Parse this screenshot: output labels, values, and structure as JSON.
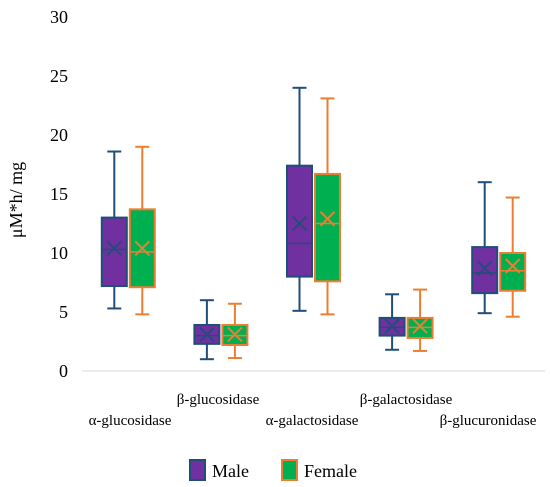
{
  "chart_data": {
    "type": "boxplot",
    "title": "",
    "xlabel": "",
    "ylabel": "μM*h/ mg",
    "ylim": [
      0,
      30
    ],
    "yticks": [
      0,
      5,
      10,
      15,
      20,
      25,
      30
    ],
    "grid": false,
    "legend_position": "bottom",
    "categories": [
      "α-glucosidase",
      "β-glucosidase",
      "α-galactosidase",
      "β-galactosidase",
      "β-glucuronidase"
    ],
    "series": [
      {
        "name": "Male",
        "fill": "#7030A0",
        "stroke": "#1F4E79",
        "data": [
          {
            "min": 5.3,
            "q1": 7.2,
            "median": 10.3,
            "q3": 13.0,
            "max": 18.6,
            "mean": 10.4
          },
          {
            "min": 1.0,
            "q1": 2.3,
            "median": 3.0,
            "q3": 3.9,
            "max": 6.0,
            "mean": 3.1
          },
          {
            "min": 5.1,
            "q1": 8.0,
            "median": 10.8,
            "q3": 17.4,
            "max": 24.0,
            "mean": 12.5
          },
          {
            "min": 1.8,
            "q1": 3.0,
            "median": 3.7,
            "q3": 4.5,
            "max": 6.5,
            "mean": 3.8
          },
          {
            "min": 4.9,
            "q1": 6.6,
            "median": 8.3,
            "q3": 10.5,
            "max": 16.0,
            "mean": 8.7
          }
        ]
      },
      {
        "name": "Female",
        "fill": "#00B050",
        "stroke": "#ED7D31",
        "data": [
          {
            "min": 4.8,
            "q1": 7.1,
            "median": 10.1,
            "q3": 13.7,
            "max": 19.0,
            "mean": 10.4
          },
          {
            "min": 1.1,
            "q1": 2.2,
            "median": 3.0,
            "q3": 3.9,
            "max": 5.7,
            "mean": 3.1
          },
          {
            "min": 4.8,
            "q1": 7.6,
            "median": 12.5,
            "q3": 16.7,
            "max": 23.1,
            "mean": 12.9
          },
          {
            "min": 1.7,
            "q1": 2.8,
            "median": 3.7,
            "q3": 4.5,
            "max": 6.9,
            "mean": 3.8
          },
          {
            "min": 4.6,
            "q1": 6.8,
            "median": 8.5,
            "q3": 10.0,
            "max": 14.7,
            "mean": 8.9
          }
        ]
      }
    ]
  }
}
